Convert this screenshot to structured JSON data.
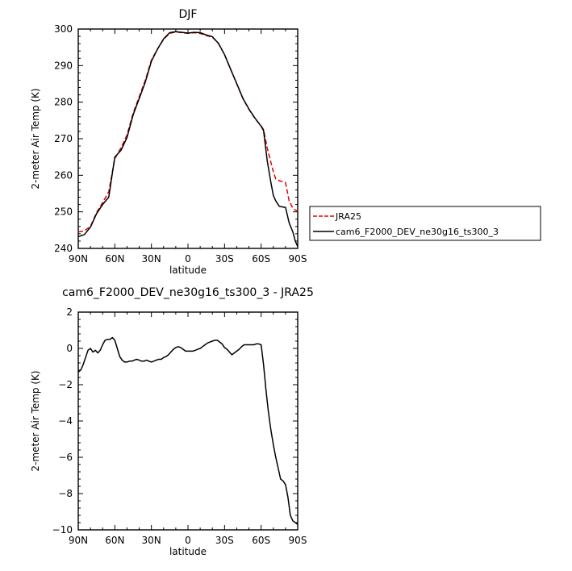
{
  "chart_data": [
    {
      "type": "line",
      "title": "DJF",
      "xlabel": "latitude",
      "ylabel": "2-meter Air Temp (K)",
      "xlim": [
        -90,
        90
      ],
      "ylim": [
        240,
        300
      ],
      "xticks": [
        {
          "value": -90,
          "label": "90N"
        },
        {
          "value": -60,
          "label": "60N"
        },
        {
          "value": -30,
          "label": "30N"
        },
        {
          "value": 0,
          "label": "0"
        },
        {
          "value": 30,
          "label": "30S"
        },
        {
          "value": 60,
          "label": "60S"
        },
        {
          "value": 90,
          "label": "90S"
        }
      ],
      "yticks": [
        240,
        250,
        260,
        270,
        280,
        290,
        300
      ],
      "series": [
        {
          "name": "JRA25",
          "color": "#e00000",
          "dash": "dashed",
          "x": [
            -90,
            -85,
            -80,
            -75,
            -70,
            -65,
            -60,
            -55,
            -50,
            -45,
            -40,
            -35,
            -30,
            -25,
            -20,
            -15,
            -10,
            -5,
            0,
            5,
            10,
            15,
            20,
            25,
            30,
            35,
            40,
            45,
            50,
            55,
            60,
            62,
            65,
            68,
            70,
            72,
            75,
            80,
            83,
            86,
            88,
            90
          ],
          "y": [
            244.5,
            244.8,
            246.0,
            249.8,
            252.5,
            255.5,
            264.5,
            267.5,
            271.0,
            277.0,
            281.5,
            286.0,
            291.5,
            294.5,
            297.2,
            298.8,
            299.2,
            299.0,
            298.8,
            299.0,
            298.8,
            298.2,
            297.8,
            296.0,
            293.0,
            289.0,
            285.0,
            281.0,
            278.0,
            275.5,
            273.5,
            272.5,
            267.5,
            263.5,
            261.0,
            259.0,
            258.5,
            258.0,
            253.0,
            251.0,
            250.5,
            250.2
          ]
        },
        {
          "name": "cam6_F2000_DEV_ne30g16_ts300_3",
          "color": "#000000",
          "dash": "solid",
          "x": [
            -90,
            -85,
            -80,
            -75,
            -70,
            -65,
            -60,
            -55,
            -50,
            -45,
            -40,
            -35,
            -30,
            -25,
            -20,
            -15,
            -10,
            -5,
            0,
            5,
            10,
            15,
            20,
            25,
            30,
            35,
            40,
            45,
            50,
            55,
            60,
            62,
            65,
            68,
            70,
            72,
            75,
            80,
            83,
            86,
            88,
            90
          ],
          "y": [
            243.2,
            243.8,
            245.8,
            249.5,
            252.0,
            254.0,
            265.0,
            266.8,
            270.3,
            276.5,
            281.0,
            285.5,
            291.2,
            294.5,
            297.3,
            299.0,
            299.3,
            299.1,
            298.9,
            299.1,
            299.0,
            298.4,
            297.9,
            296.1,
            293.0,
            289.0,
            285.1,
            281.1,
            278.1,
            275.6,
            273.4,
            272.2,
            264.0,
            258.0,
            254.5,
            253.0,
            251.5,
            251.2,
            247.0,
            244.5,
            242.0,
            240.5
          ]
        }
      ],
      "legend": {
        "position": "right-outside",
        "entries": [
          "JRA25",
          "cam6_F2000_DEV_ne30g16_ts300_3"
        ]
      }
    },
    {
      "type": "line",
      "title": "cam6_F2000_DEV_ne30g16_ts300_3 - JRA25",
      "xlabel": "latitude",
      "ylabel": "2-meter Air Temp (K)",
      "xlim": [
        -90,
        90
      ],
      "ylim": [
        -10,
        2
      ],
      "xticks": [
        {
          "value": -90,
          "label": "90N"
        },
        {
          "value": -60,
          "label": "60N"
        },
        {
          "value": -30,
          "label": "30N"
        },
        {
          "value": 0,
          "label": "0"
        },
        {
          "value": 30,
          "label": "30S"
        },
        {
          "value": 60,
          "label": "60S"
        },
        {
          "value": 90,
          "label": "90S"
        }
      ],
      "yticks": [
        -10,
        -8,
        -6,
        -4,
        -2,
        0,
        2
      ],
      "series": [
        {
          "name": "cam6_F2000_DEV_ne30g16_ts300_3 - JRA25",
          "color": "#000000",
          "dash": "solid",
          "x": [
            -90,
            -88,
            -86,
            -84,
            -82,
            -80,
            -78,
            -76,
            -74,
            -72,
            -70,
            -68,
            -66,
            -64,
            -62,
            -60,
            -58,
            -56,
            -54,
            -52,
            -50,
            -48,
            -46,
            -44,
            -42,
            -40,
            -38,
            -36,
            -34,
            -32,
            -30,
            -28,
            -26,
            -24,
            -22,
            -20,
            -18,
            -16,
            -14,
            -12,
            -10,
            -8,
            -6,
            -4,
            -2,
            0,
            2,
            4,
            6,
            8,
            10,
            12,
            14,
            16,
            18,
            20,
            22,
            24,
            26,
            28,
            30,
            32,
            34,
            36,
            38,
            40,
            42,
            44,
            46,
            48,
            50,
            52,
            54,
            56,
            58,
            60,
            62,
            64,
            66,
            68,
            70,
            72,
            74,
            76,
            78,
            80,
            82,
            84,
            86,
            88,
            90
          ],
          "y": [
            -1.3,
            -1.2,
            -0.9,
            -0.5,
            -0.1,
            0.0,
            -0.2,
            -0.1,
            -0.25,
            -0.1,
            0.2,
            0.45,
            0.5,
            0.5,
            0.6,
            0.45,
            0.0,
            -0.45,
            -0.65,
            -0.75,
            -0.75,
            -0.7,
            -0.7,
            -0.65,
            -0.6,
            -0.65,
            -0.7,
            -0.7,
            -0.65,
            -0.7,
            -0.75,
            -0.7,
            -0.65,
            -0.6,
            -0.6,
            -0.5,
            -0.45,
            -0.35,
            -0.2,
            -0.05,
            0.05,
            0.1,
            0.05,
            -0.05,
            -0.15,
            -0.15,
            -0.15,
            -0.15,
            -0.1,
            -0.05,
            0.0,
            0.1,
            0.2,
            0.3,
            0.35,
            0.4,
            0.45,
            0.45,
            0.35,
            0.25,
            0.05,
            -0.05,
            -0.2,
            -0.35,
            -0.25,
            -0.15,
            -0.05,
            0.1,
            0.2,
            0.2,
            0.2,
            0.2,
            0.2,
            0.25,
            0.25,
            0.2,
            -0.9,
            -2.3,
            -3.5,
            -4.5,
            -5.3,
            -6.0,
            -6.6,
            -7.2,
            -7.3,
            -7.5,
            -8.2,
            -9.2,
            -9.5,
            -9.6,
            -9.7
          ]
        }
      ]
    }
  ]
}
